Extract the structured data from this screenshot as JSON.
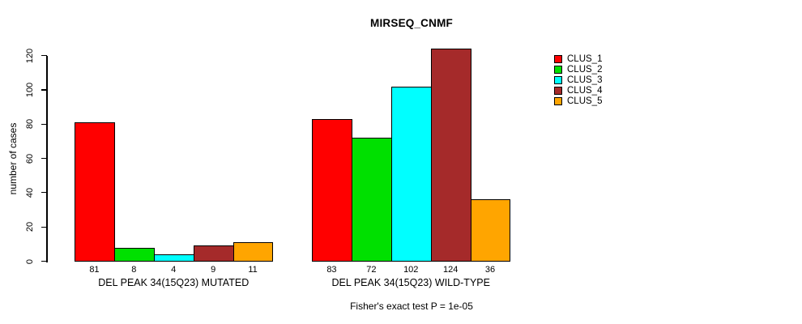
{
  "chart_data": {
    "type": "bar",
    "title": "MIRSEQ_CNMF",
    "ylabel": "number of cases",
    "footnote": "Fisher's exact test P = 1e-05",
    "ylim": [
      0,
      120
    ],
    "yticks": [
      0,
      20,
      40,
      60,
      80,
      100,
      120
    ],
    "grid": false,
    "legend_position": "right",
    "values_shown_below_bars": true,
    "series": [
      "CLUS_1",
      "CLUS_2",
      "CLUS_3",
      "CLUS_4",
      "CLUS_5"
    ],
    "colors": [
      "#FF0000",
      "#00E000",
      "#00FFFF",
      "#A52A2A",
      "#FFA500"
    ],
    "groups": [
      {
        "label": "DEL PEAK 34(15Q23) MUTATED",
        "values": [
          81,
          8,
          4,
          9,
          11
        ]
      },
      {
        "label": "DEL PEAK 34(15Q23) WILD-TYPE",
        "values": [
          83,
          72,
          102,
          124,
          36
        ]
      }
    ]
  }
}
